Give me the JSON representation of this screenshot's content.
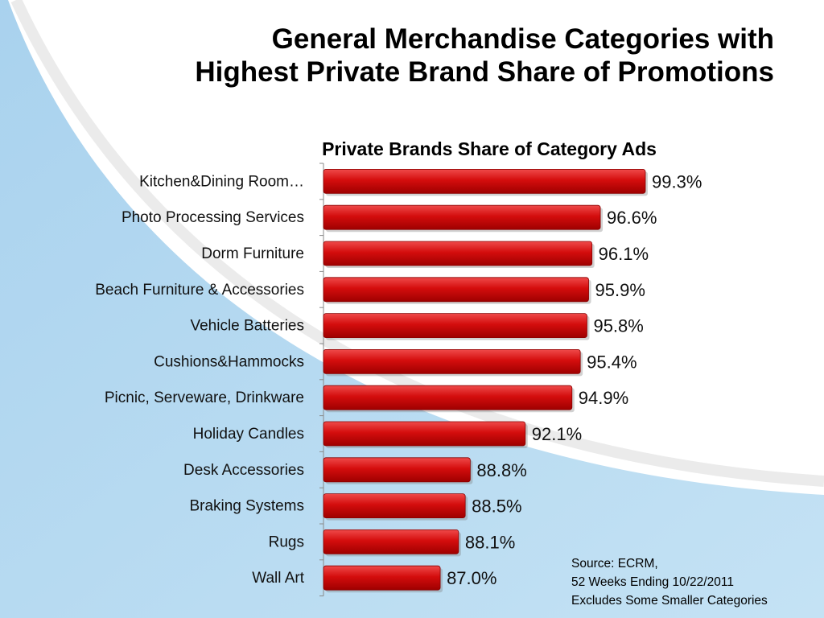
{
  "slide": {
    "title_line1": "General Merchandise Categories with",
    "title_line2": "Highest Private Brand Share of Promotions"
  },
  "colors": {
    "bar": "#d40d0d",
    "bar_dark": "#9e0000",
    "bar_light": "#ef4a4a",
    "background_blue": "#bcdcf0"
  },
  "chart_data": {
    "type": "bar",
    "orientation": "horizontal",
    "title": "Private Brands Share of Category Ads",
    "categories": [
      "Kitchen&Dining Room…",
      "Photo Processing Services",
      "Dorm Furniture",
      "Beach Furniture & Accessories",
      "Vehicle Batteries",
      "Cushions&Hammocks",
      "Picnic, Serveware, Drinkware",
      "Holiday Candles",
      "Desk Accessories",
      "Braking Systems",
      "Rugs",
      "Wall Art"
    ],
    "values": [
      99.3,
      96.6,
      96.1,
      95.9,
      95.8,
      95.4,
      94.9,
      92.1,
      88.8,
      88.5,
      88.1,
      87.0
    ],
    "data_labels": [
      "99.3%",
      "96.6%",
      "96.1%",
      "95.9%",
      "95.8%",
      "95.4%",
      "94.9%",
      "92.1%",
      "88.8%",
      "88.5%",
      "88.1%",
      "87.0%"
    ],
    "xlim": [
      80,
      100
    ],
    "grid": false,
    "legend": "none"
  },
  "source": {
    "line1": "Source:  ECRM,",
    "line2": "52 Weeks Ending 10/22/2011",
    "line3": "Excludes Some Smaller Categories"
  }
}
